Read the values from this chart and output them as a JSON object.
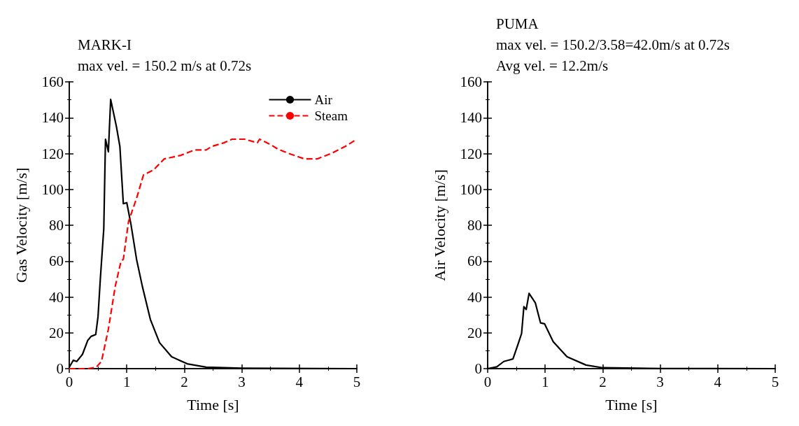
{
  "chart_data": [
    {
      "type": "line",
      "title": "MARK-I",
      "subtitle": "max vel. = 150.2 m/s at 0.72s",
      "xlabel": "Time [s]",
      "ylabel": "Gas Velocity [m/s]",
      "xlim": [
        0,
        5
      ],
      "xticks": [
        0,
        1,
        2,
        3,
        4,
        5
      ],
      "ylim": [
        0,
        160
      ],
      "yticks": [
        0,
        20,
        40,
        60,
        80,
        100,
        120,
        140,
        160
      ],
      "grid": false,
      "legend": "top right",
      "marker": "none",
      "series": [
        {
          "name": "Air",
          "color": "#000000",
          "line_style": "solid",
          "x": [
            0,
            0.07,
            0.13,
            0.23,
            0.32,
            0.38,
            0.46,
            0.5,
            0.54,
            0.6,
            0.63,
            0.68,
            0.72,
            0.82,
            0.88,
            0.94,
            1.0,
            1.07,
            1.17,
            1.27,
            1.41,
            1.57,
            1.78,
            2.05,
            2.38,
            3,
            5
          ],
          "values": [
            0.8,
            4.7,
            4,
            8,
            15.7,
            18,
            19,
            29,
            50,
            78,
            128,
            121,
            150.2,
            135,
            124,
            92,
            92.6,
            81,
            61,
            46,
            27.5,
            14.5,
            6.6,
            2.7,
            0.8,
            0.3,
            0
          ]
        },
        {
          "name": "Steam",
          "color": "#ff0000",
          "line_style": "dashed",
          "x": [
            0,
            0.32,
            0.47,
            0.56,
            0.68,
            0.8,
            0.9,
            0.94,
            1.03,
            1.17,
            1.29,
            1.47,
            1.65,
            1.94,
            2.18,
            2.38,
            2.48,
            2.69,
            2.83,
            3.05,
            3.27,
            3.31,
            3.5,
            3.62,
            3.82,
            4.09,
            4.31,
            4.55,
            4.8,
            5
          ],
          "values": [
            0,
            0,
            0.8,
            4,
            22,
            46,
            60,
            61,
            82,
            95,
            108,
            111,
            117,
            119,
            122,
            122,
            124,
            126,
            128,
            128,
            126,
            128,
            125,
            122.6,
            120,
            117,
            117,
            120,
            124,
            128
          ]
        }
      ]
    },
    {
      "type": "line",
      "title": "PUMA",
      "annotations": [
        "max vel. = 150.2/3.58=42.0m/s at 0.72s",
        "Avg vel. = 12.2m/s"
      ],
      "xlabel": "Time [s]",
      "ylabel": "Air Velocity [m/s]",
      "xlim": [
        0,
        5
      ],
      "xticks": [
        0,
        1,
        2,
        3,
        4,
        5
      ],
      "ylim": [
        0,
        160
      ],
      "yticks": [
        0,
        20,
        40,
        60,
        80,
        100,
        120,
        140,
        160
      ],
      "grid": false,
      "legend": false,
      "marker": "none",
      "series": [
        {
          "color": "#000000",
          "line_style": "solid",
          "x": [
            0,
            0.16,
            0.28,
            0.36,
            0.44,
            0.53,
            0.59,
            0.63,
            0.67,
            0.72,
            0.83,
            0.92,
            0.99,
            1.14,
            1.38,
            1.71,
            2.0,
            3,
            5
          ],
          "values": [
            0,
            1,
            4,
            4.7,
            5.4,
            13.8,
            19.6,
            34.6,
            33,
            42.0,
            36.6,
            25.5,
            25,
            15,
            6.6,
            2,
            0.5,
            0.1,
            0
          ]
        }
      ]
    }
  ]
}
